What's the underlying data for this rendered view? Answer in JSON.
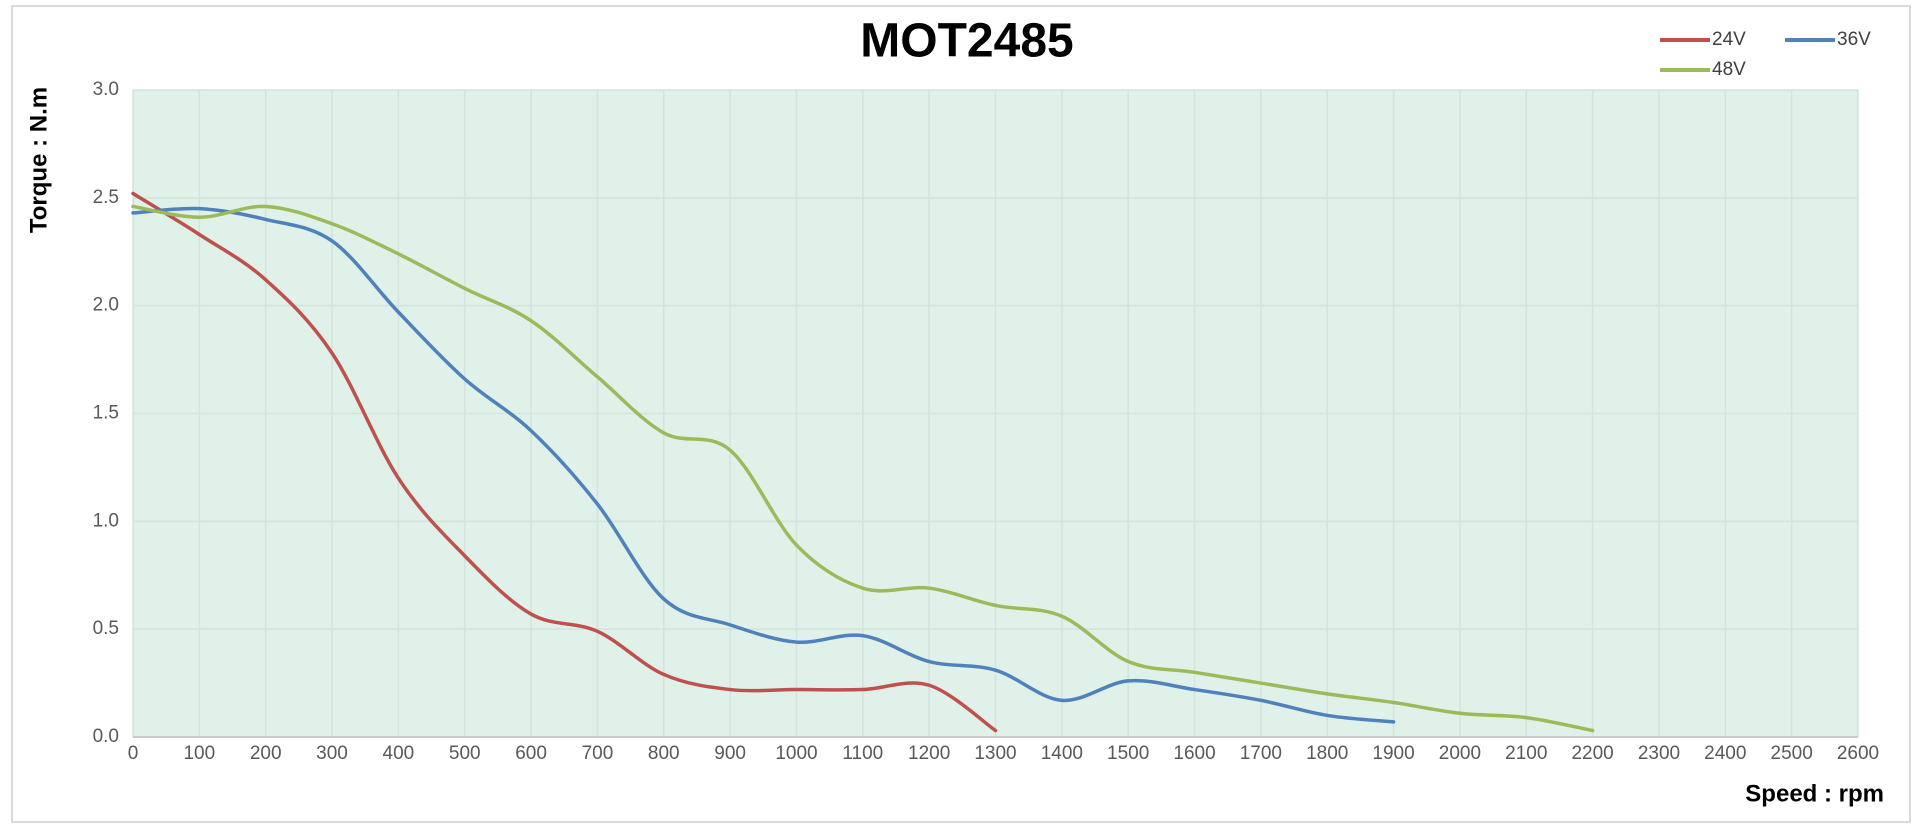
{
  "chart_data": {
    "type": "line",
    "title": "MOT2485",
    "x_label": "Speed : rpm",
    "y_label": "Torque : N.m",
    "xlim": [
      0,
      2600
    ],
    "xticks": [
      0,
      100,
      200,
      300,
      400,
      500,
      600,
      700,
      800,
      900,
      1000,
      1100,
      1200,
      1300,
      1400,
      1500,
      1600,
      1700,
      1800,
      1900,
      2000,
      2100,
      2200,
      2300,
      2400,
      2500,
      2600
    ],
    "ylim": [
      0,
      3
    ],
    "yticks": [
      {
        "value": 0,
        "label": "0.0"
      },
      0.5,
      {
        "value": 1,
        "label": "1.0"
      },
      1.5,
      {
        "value": 2,
        "label": "2.0"
      },
      2.5,
      {
        "value": 3,
        "label": "3.0"
      }
    ],
    "grid": true,
    "plot_background": "#dff1e9",
    "legend": "top-right",
    "series": [
      {
        "name": "24V",
        "color": "#c0504d",
        "x": [
          0,
          100,
          200,
          300,
          400,
          500,
          600,
          700,
          800,
          900,
          1000,
          1100,
          1200,
          1300
        ],
        "values": [
          2.52,
          2.33,
          2.12,
          1.78,
          1.2,
          0.84,
          0.57,
          0.49,
          0.29,
          0.22,
          0.22,
          0.22,
          0.24,
          0.03
        ]
      },
      {
        "name": "36V",
        "color": "#4f81bd",
        "x": [
          0,
          100,
          200,
          300,
          400,
          500,
          600,
          700,
          800,
          900,
          1000,
          1100,
          1200,
          1300,
          1400,
          1500,
          1600,
          1700,
          1800,
          1900
        ],
        "values": [
          2.43,
          2.45,
          2.4,
          2.3,
          1.97,
          1.66,
          1.42,
          1.08,
          0.64,
          0.52,
          0.44,
          0.47,
          0.35,
          0.31,
          0.17,
          0.26,
          0.22,
          0.17,
          0.1,
          0.07
        ]
      },
      {
        "name": "48V",
        "color": "#9bbb59",
        "x": [
          0,
          100,
          200,
          300,
          400,
          500,
          600,
          700,
          800,
          900,
          1000,
          1100,
          1200,
          1300,
          1400,
          1500,
          1600,
          1700,
          1800,
          1900,
          2000,
          2100,
          2200
        ],
        "values": [
          2.46,
          2.41,
          2.46,
          2.38,
          2.24,
          2.08,
          1.93,
          1.67,
          1.41,
          1.33,
          0.89,
          0.69,
          0.69,
          0.61,
          0.56,
          0.35,
          0.3,
          0.25,
          0.2,
          0.16,
          0.11,
          0.09,
          0.03
        ]
      }
    ]
  }
}
